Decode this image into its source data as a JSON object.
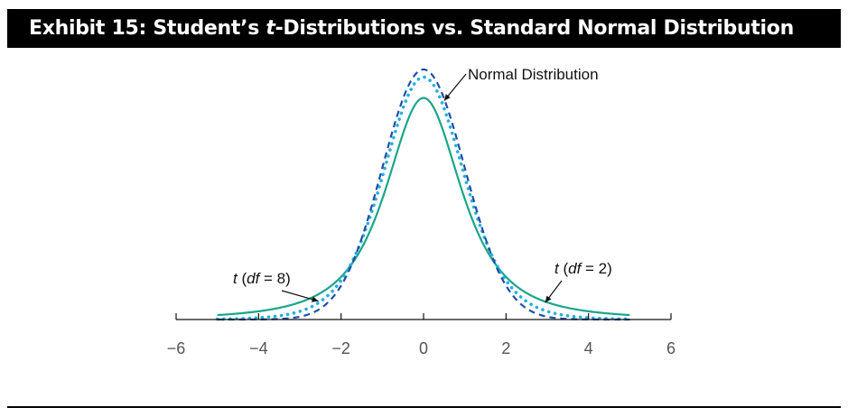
{
  "header": {
    "title_prefix": "Exhibit 15: Student’s ",
    "title_italic": "t",
    "title_suffix": "-Distributions vs. Standard Normal Distribution"
  },
  "chart_data": {
    "type": "line",
    "title": "Exhibit 15: Student’s t-Distributions vs. Standard Normal Distribution",
    "xlim": [
      -6,
      6
    ],
    "x_ticks": [
      -6,
      -4,
      -2,
      0,
      2,
      4,
      6
    ],
    "x_tick_labels": [
      "−6",
      "−4",
      "−2",
      "0",
      "2",
      "4",
      "6"
    ],
    "y_axis_visible": false,
    "grid": false,
    "x_range_plotted": [
      -5,
      5
    ],
    "series": [
      {
        "name": "Normal Distribution",
        "distribution": "normal",
        "df": null,
        "color": "#1f4fa8",
        "style": "dashed"
      },
      {
        "name": "t (df = 8)",
        "distribution": "t",
        "df": 8,
        "color": "#22b0e0",
        "style": "dotted"
      },
      {
        "name": "t (df = 2)",
        "distribution": "t",
        "df": 2,
        "color": "#1aa58a",
        "style": "solid"
      }
    ],
    "annotations": [
      {
        "text": "Normal Distribution",
        "points_to": "Normal Distribution"
      },
      {
        "text_pre": "t (",
        "text_italic": "df",
        "text_post": " = 8)",
        "points_to": "t (df = 8)"
      },
      {
        "text_pre": "t (",
        "text_italic": "df",
        "text_post": " = 2)",
        "points_to": "t (df = 2)"
      }
    ]
  }
}
